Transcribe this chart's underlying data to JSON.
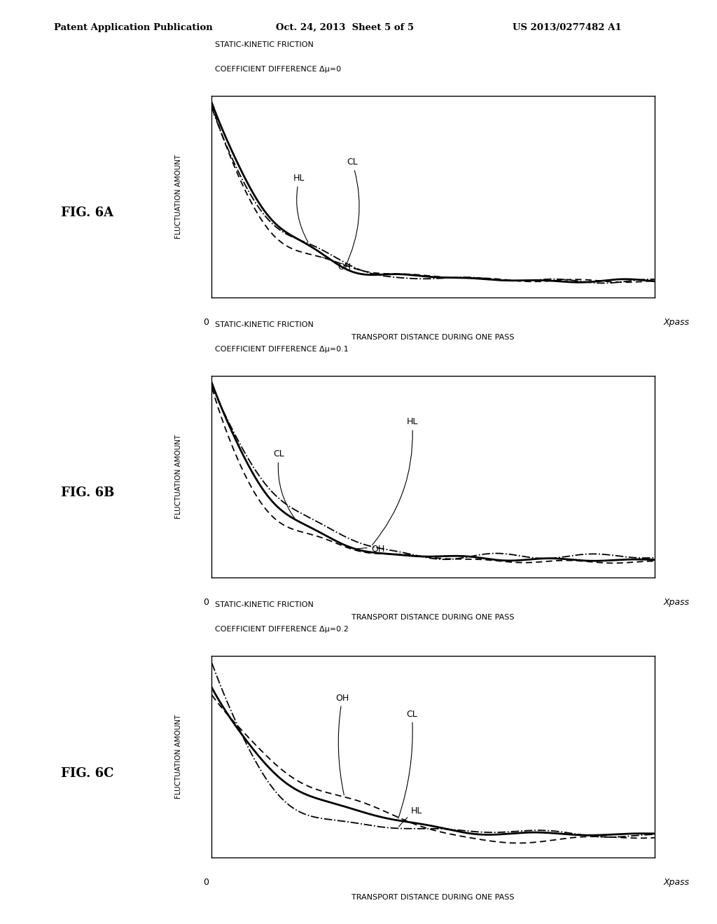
{
  "page_header_left": "Patent Application Publication",
  "page_header_center": "Oct. 24, 2013  Sheet 5 of 5",
  "page_header_right": "US 2013/0277482 A1",
  "background_color": "#ffffff",
  "figures": [
    {
      "label": "FIG. 6A",
      "title_line1": "STATIC-KINETIC FRICTION",
      "title_line2": "COEFFICIENT DIFFERENCE Δμ=0",
      "xlabel": "TRANSPORT DISTANCE DURING ONE PASS",
      "ylabel": "FLUCTUATION AMOUNT",
      "xmin_label": "0",
      "xmax_label": "Xpass"
    },
    {
      "label": "FIG. 6B",
      "title_line1": "STATIC-KINETIC FRICTION",
      "title_line2": "COEFFICIENT DIFFERENCE Δμ=0.1",
      "xlabel": "TRANSPORT DISTANCE DURING ONE PASS",
      "ylabel": "FLUCTUATION AMOUNT",
      "xmin_label": "0",
      "xmax_label": "Xpass"
    },
    {
      "label": "FIG. 6C",
      "title_line1": "STATIC-KINETIC FRICTION",
      "title_line2": "COEFFICIENT DIFFERENCE Δμ=0.2",
      "xlabel": "TRANSPORT DISTANCE DURING ONE PASS",
      "ylabel": "FLUCTUATION AMOUNT",
      "xmin_label": "0",
      "xmax_label": "Xpass"
    }
  ]
}
